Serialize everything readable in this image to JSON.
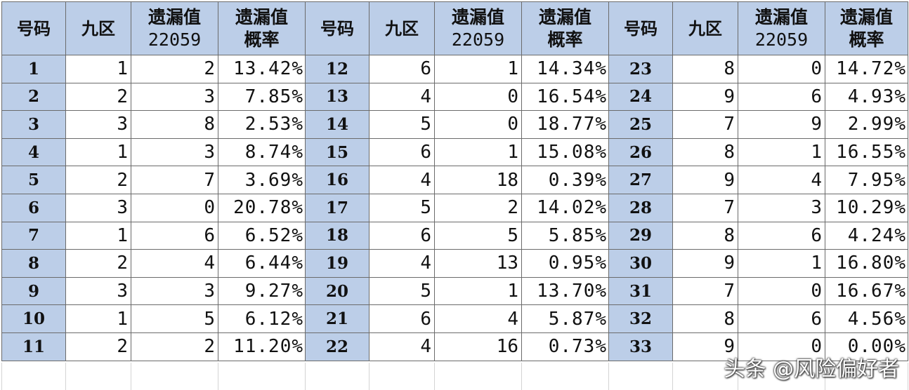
{
  "table": {
    "header": {
      "number": "号码",
      "zone": "九区",
      "missing_line1": "遗漏值",
      "missing_line2": "22059",
      "prob_line1": "遗漏值",
      "prob_line2": "概率"
    },
    "rows": [
      [
        [
          "1",
          "1",
          "2",
          "13.42%"
        ],
        [
          "12",
          "6",
          "1",
          "14.34%"
        ],
        [
          "23",
          "8",
          "0",
          "14.72%"
        ]
      ],
      [
        [
          "2",
          "2",
          "3",
          "7.85%"
        ],
        [
          "13",
          "4",
          "0",
          "16.54%"
        ],
        [
          "24",
          "9",
          "6",
          "4.93%"
        ]
      ],
      [
        [
          "3",
          "3",
          "8",
          "2.53%"
        ],
        [
          "14",
          "5",
          "0",
          "18.77%"
        ],
        [
          "25",
          "7",
          "9",
          "2.99%"
        ]
      ],
      [
        [
          "4",
          "1",
          "3",
          "8.74%"
        ],
        [
          "15",
          "6",
          "1",
          "15.08%"
        ],
        [
          "26",
          "8",
          "1",
          "16.55%"
        ]
      ],
      [
        [
          "5",
          "2",
          "7",
          "3.69%"
        ],
        [
          "16",
          "4",
          "18",
          "0.39%"
        ],
        [
          "27",
          "9",
          "4",
          "7.95%"
        ]
      ],
      [
        [
          "6",
          "3",
          "0",
          "20.78%"
        ],
        [
          "17",
          "5",
          "2",
          "14.02%"
        ],
        [
          "28",
          "7",
          "3",
          "10.29%"
        ]
      ],
      [
        [
          "7",
          "1",
          "6",
          "6.52%"
        ],
        [
          "18",
          "6",
          "5",
          "5.85%"
        ],
        [
          "29",
          "8",
          "6",
          "4.24%"
        ]
      ],
      [
        [
          "8",
          "2",
          "4",
          "6.44%"
        ],
        [
          "19",
          "4",
          "13",
          "0.95%"
        ],
        [
          "30",
          "9",
          "1",
          "16.80%"
        ]
      ],
      [
        [
          "9",
          "3",
          "3",
          "9.27%"
        ],
        [
          "20",
          "5",
          "1",
          "13.70%"
        ],
        [
          "31",
          "7",
          "0",
          "16.67%"
        ]
      ],
      [
        [
          "10",
          "1",
          "5",
          "6.12%"
        ],
        [
          "21",
          "6",
          "4",
          "5.87%"
        ],
        [
          "32",
          "8",
          "6",
          "4.56%"
        ]
      ],
      [
        [
          "11",
          "2",
          "2",
          "11.20%"
        ],
        [
          "22",
          "4",
          "16",
          "0.73%"
        ],
        [
          "33",
          "9",
          "0",
          "0.00%"
        ]
      ]
    ]
  },
  "watermark": "头条 @风险偏好者"
}
